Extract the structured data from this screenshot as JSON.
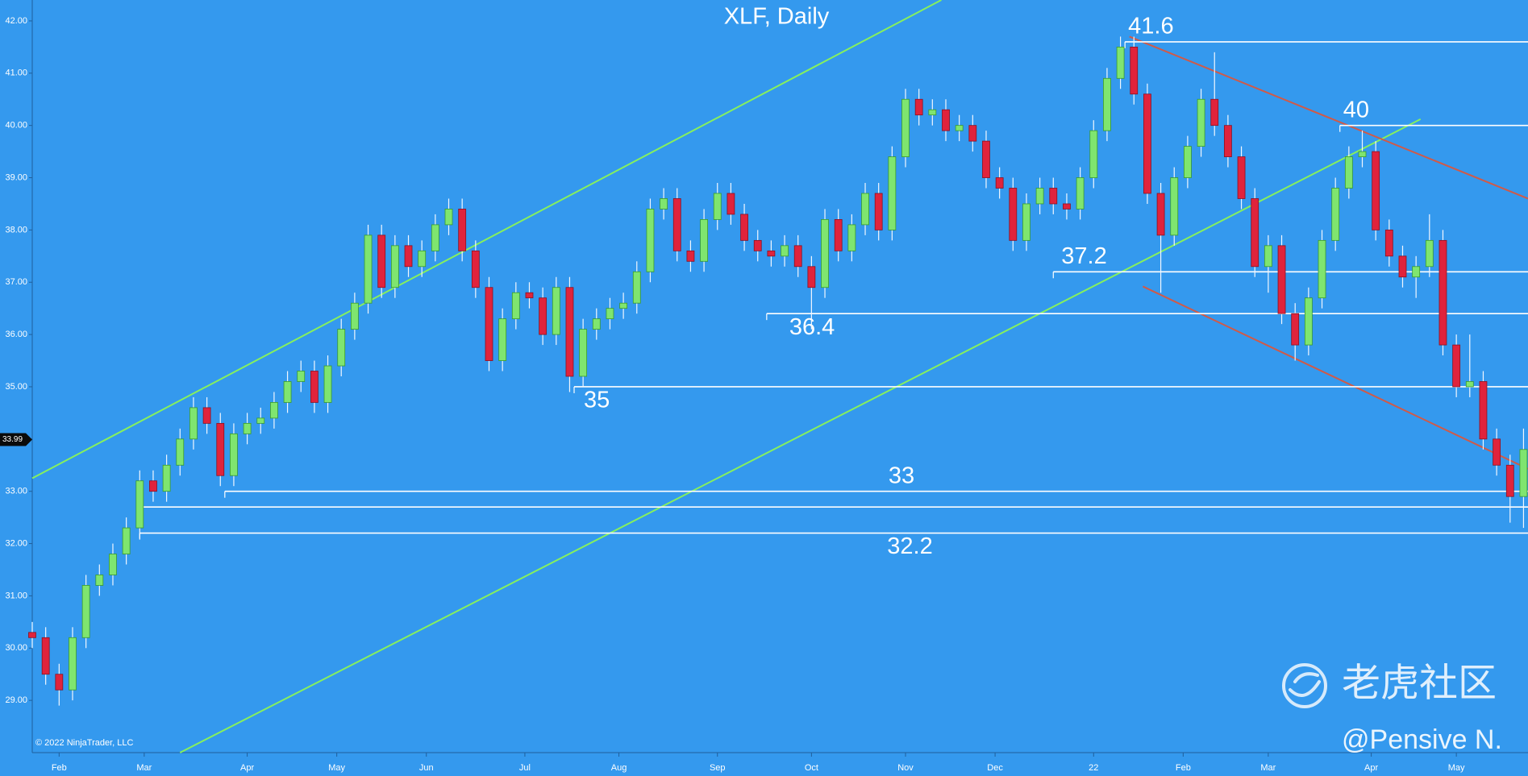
{
  "chart_data": {
    "type": "candlestick",
    "title": "XLF, Daily",
    "copyright": "© 2022 NinjaTrader, LLC",
    "watermark": "老虎社区",
    "author": "@Pensive N.",
    "xlim": [
      0,
      334
    ],
    "ylim": [
      28,
      42.4
    ],
    "xticks": [
      {
        "value": 6,
        "label": "Feb"
      },
      {
        "value": 25,
        "label": "Mar"
      },
      {
        "value": 48,
        "label": "Apr"
      },
      {
        "value": 68,
        "label": "May"
      },
      {
        "value": 88,
        "label": "Jun"
      },
      {
        "value": 110,
        "label": "Jul"
      },
      {
        "value": 131,
        "label": "Aug"
      },
      {
        "value": 153,
        "label": "Sep"
      },
      {
        "value": 174,
        "label": "Oct"
      },
      {
        "value": 195,
        "label": "Nov"
      },
      {
        "value": 215,
        "label": "Dec"
      },
      {
        "value": 237,
        "label": "22"
      },
      {
        "value": 257,
        "label": "Feb"
      },
      {
        "value": 276,
        "label": "Mar"
      },
      {
        "value": 299,
        "label": "Apr"
      },
      {
        "value": 318,
        "label": "May"
      }
    ],
    "yticks": [
      {
        "value": 29,
        "label": "29.00"
      },
      {
        "value": 30,
        "label": "30.00"
      },
      {
        "value": 31,
        "label": "31.00"
      },
      {
        "value": 32,
        "label": "32.00"
      },
      {
        "value": 33,
        "label": "33.00"
      },
      {
        "value": 34,
        "label": "34.00"
      },
      {
        "value": 35,
        "label": "35.00"
      },
      {
        "value": 36,
        "label": "36.00"
      },
      {
        "value": 37,
        "label": "37.00"
      },
      {
        "value": 38,
        "label": "38.00"
      },
      {
        "value": 39,
        "label": "39.00"
      },
      {
        "value": 40,
        "label": "40.00"
      },
      {
        "value": 41,
        "label": "41.00"
      },
      {
        "value": 42,
        "label": "42.00"
      }
    ],
    "up_color": "#7fe56f",
    "down_color": "#e0233c",
    "last_price": 33.99,
    "x": [
      0,
      3,
      6,
      9,
      12,
      15,
      18,
      21,
      24,
      27,
      30,
      33,
      36,
      39,
      42,
      45,
      48,
      51,
      54,
      57,
      60,
      63,
      66,
      69,
      72,
      75,
      78,
      81,
      84,
      87,
      90,
      93,
      96,
      99,
      102,
      105,
      108,
      111,
      114,
      117,
      120,
      123,
      126,
      129,
      132,
      135,
      138,
      141,
      144,
      147,
      150,
      153,
      156,
      159,
      162,
      165,
      168,
      171,
      174,
      177,
      180,
      183,
      186,
      189,
      192,
      195,
      198,
      201,
      204,
      207,
      210,
      213,
      216,
      219,
      222,
      225,
      228,
      231,
      234,
      237,
      240,
      243,
      246,
      249,
      252,
      255,
      258,
      261,
      264,
      267,
      270,
      273,
      276,
      279,
      282,
      285,
      288,
      291,
      294,
      297,
      300,
      303,
      306,
      309,
      312,
      315,
      318,
      321,
      324,
      327,
      330,
      333
    ],
    "open": [
      30.3,
      30.2,
      29.5,
      29.2,
      30.2,
      31.2,
      31.4,
      31.8,
      32.3,
      33.2,
      33.0,
      33.5,
      34.0,
      34.6,
      34.3,
      33.3,
      34.1,
      34.3,
      34.4,
      34.7,
      35.1,
      35.3,
      34.7,
      35.4,
      36.1,
      36.6,
      37.9,
      36.9,
      37.7,
      37.3,
      37.6,
      38.1,
      38.4,
      37.6,
      36.9,
      35.5,
      36.3,
      36.8,
      36.7,
      36.0,
      36.9,
      35.2,
      36.1,
      36.3,
      36.5,
      36.6,
      37.2,
      38.4,
      38.6,
      37.6,
      37.4,
      38.2,
      38.7,
      38.3,
      37.8,
      37.6,
      37.5,
      37.7,
      37.3,
      36.9,
      38.2,
      37.6,
      38.1,
      38.7,
      38.0,
      39.4,
      40.5,
      40.2,
      40.3,
      39.9,
      40.0,
      39.7,
      39.0,
      38.8,
      37.8,
      38.5,
      38.8,
      38.5,
      38.4,
      39.0,
      39.9,
      40.9,
      41.5,
      40.6,
      38.7,
      37.9,
      39.0,
      39.6,
      40.5,
      40.0,
      39.4,
      38.6,
      37.3,
      37.7,
      36.4,
      35.8,
      36.7,
      37.8,
      38.8,
      39.4,
      39.5,
      38.0,
      37.5,
      37.1,
      37.3,
      37.8,
      35.8,
      35.0,
      35.1,
      34.0,
      33.5,
      32.9
    ],
    "high": [
      30.5,
      30.4,
      29.7,
      30.4,
      31.4,
      31.6,
      32.0,
      32.5,
      33.4,
      33.4,
      33.7,
      34.2,
      34.8,
      34.8,
      34.5,
      34.3,
      34.5,
      34.6,
      34.9,
      35.3,
      35.5,
      35.5,
      35.6,
      36.3,
      36.8,
      38.1,
      38.1,
      37.9,
      37.9,
      37.8,
      38.3,
      38.6,
      38.6,
      37.8,
      37.1,
      36.5,
      37.0,
      37.0,
      36.9,
      37.1,
      37.1,
      36.3,
      36.5,
      36.7,
      36.8,
      37.4,
      38.6,
      38.8,
      38.8,
      37.8,
      38.4,
      38.9,
      38.9,
      38.5,
      38.0,
      37.8,
      37.9,
      37.9,
      37.5,
      38.4,
      38.4,
      38.3,
      38.9,
      38.9,
      39.6,
      40.7,
      40.7,
      40.5,
      40.5,
      40.2,
      40.2,
      39.9,
      39.2,
      39.0,
      38.7,
      39.0,
      39.0,
      38.7,
      39.2,
      40.1,
      41.1,
      41.7,
      41.7,
      40.8,
      38.9,
      39.2,
      39.8,
      40.7,
      41.4,
      40.2,
      39.6,
      38.8,
      37.9,
      37.9,
      36.6,
      36.9,
      38.0,
      39.0,
      39.6,
      39.9,
      39.7,
      38.2,
      37.7,
      37.5,
      38.3,
      38.0,
      36.0,
      36.0,
      35.3,
      34.2,
      33.7,
      34.2
    ],
    "low": [
      30.0,
      29.3,
      28.9,
      29.0,
      30.0,
      31.0,
      31.2,
      31.6,
      32.1,
      32.8,
      32.8,
      33.3,
      33.8,
      34.1,
      33.1,
      33.1,
      33.9,
      34.1,
      34.2,
      34.5,
      34.9,
      34.5,
      34.5,
      35.2,
      35.9,
      36.4,
      36.7,
      36.7,
      37.1,
      37.1,
      37.4,
      37.9,
      37.4,
      36.7,
      35.3,
      35.3,
      36.1,
      36.5,
      35.8,
      35.8,
      34.9,
      35.0,
      35.9,
      36.1,
      36.3,
      36.4,
      37.0,
      38.2,
      37.4,
      37.2,
      37.2,
      38.0,
      38.1,
      37.6,
      37.4,
      37.3,
      37.3,
      37.1,
      36.1,
      36.7,
      37.4,
      37.4,
      37.9,
      37.8,
      37.8,
      39.2,
      40.0,
      40.0,
      39.7,
      39.7,
      39.5,
      38.8,
      38.6,
      37.6,
      37.6,
      38.3,
      38.3,
      38.2,
      38.2,
      38.8,
      39.7,
      40.7,
      40.4,
      38.5,
      36.8,
      37.7,
      38.8,
      39.4,
      39.8,
      39.2,
      38.4,
      37.1,
      36.8,
      36.2,
      35.5,
      35.6,
      36.5,
      37.6,
      38.6,
      39.2,
      37.8,
      37.3,
      36.9,
      36.7,
      37.1,
      35.6,
      34.8,
      34.8,
      33.8,
      33.3,
      32.4,
      32.3
    ],
    "close": [
      30.2,
      29.5,
      29.2,
      30.2,
      31.2,
      31.4,
      31.8,
      32.3,
      33.2,
      33.0,
      33.5,
      34.0,
      34.6,
      34.3,
      33.3,
      34.1,
      34.3,
      34.4,
      34.7,
      35.1,
      35.3,
      34.7,
      35.4,
      36.1,
      36.6,
      37.9,
      36.9,
      37.7,
      37.3,
      37.6,
      38.1,
      38.4,
      37.6,
      36.9,
      35.5,
      36.3,
      36.8,
      36.7,
      36.0,
      36.9,
      35.2,
      36.1,
      36.3,
      36.5,
      36.6,
      37.2,
      38.4,
      38.6,
      37.6,
      37.4,
      38.2,
      38.7,
      38.3,
      37.8,
      37.6,
      37.5,
      37.7,
      37.3,
      36.9,
      38.2,
      37.6,
      38.1,
      38.7,
      38.0,
      39.4,
      40.5,
      40.2,
      40.3,
      39.9,
      40.0,
      39.7,
      39.0,
      38.8,
      37.8,
      38.5,
      38.8,
      38.5,
      38.4,
      39.0,
      39.9,
      40.9,
      41.5,
      40.6,
      38.7,
      37.9,
      39.0,
      39.6,
      40.5,
      40.0,
      39.4,
      38.6,
      37.3,
      37.7,
      36.4,
      35.8,
      36.7,
      37.8,
      38.8,
      39.4,
      39.5,
      38.0,
      37.5,
      37.1,
      37.3,
      37.8,
      35.8,
      35.0,
      35.1,
      34.0,
      33.5,
      32.9,
      33.8
    ],
    "levels": [
      {
        "value": 41.6,
        "from": 244
      },
      {
        "value": 40,
        "from": 292
      },
      {
        "value": 37.2,
        "from": 228
      },
      {
        "value": 36.4,
        "from": 164
      },
      {
        "value": 35,
        "from": 121
      },
      {
        "value": 33,
        "from": 43
      },
      {
        "value": 32.2,
        "from": 24
      }
    ],
    "unlabeled_levels": [
      {
        "value": 32.7,
        "from": 24
      }
    ],
    "trendlines": [
      {
        "color": "#86f05e",
        "x": [
          0,
          203
        ],
        "y": [
          33.25,
          42.4
        ]
      },
      {
        "color": "#86f05e",
        "x": [
          33,
          310
        ],
        "y": [
          28.0,
          40.12
        ]
      },
      {
        "color": "#d05a48",
        "x": [
          245,
          334
        ],
        "y": [
          41.7,
          38.6
        ]
      },
      {
        "color": "#d05a48",
        "x": [
          248,
          334
        ],
        "y": [
          36.92,
          33.43
        ]
      }
    ]
  }
}
